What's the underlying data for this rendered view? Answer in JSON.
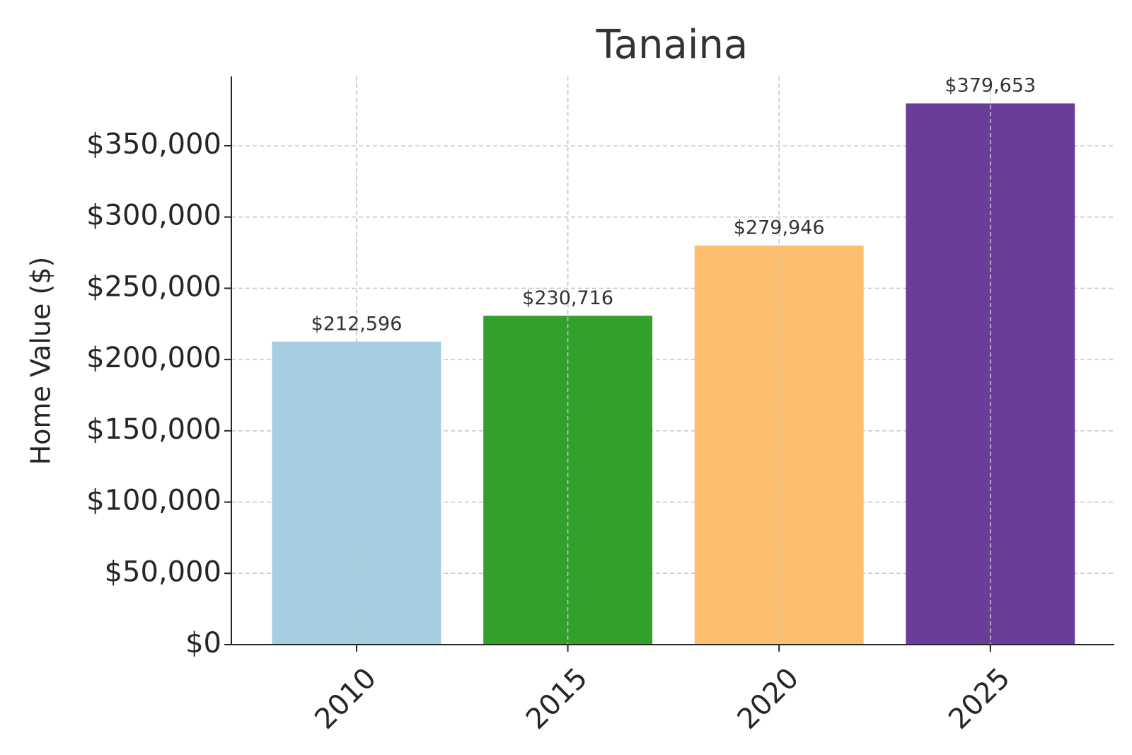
{
  "chart_data": {
    "type": "bar",
    "title": "Tanaina",
    "y_label": "Home Value ($)",
    "categories": [
      "2010",
      "2015",
      "2020",
      "2025"
    ],
    "values": [
      212596,
      230716,
      279946,
      379653
    ],
    "value_labels": [
      "$212,596",
      "$230,716",
      "$279,946",
      "$379,653"
    ],
    "colors": [
      "#a6cee3",
      "#33a02c",
      "#fdbf6f",
      "#6a3d9a"
    ],
    "ylim": [
      0,
      398636
    ],
    "yticks": [
      {
        "value": 0,
        "label": "$0"
      },
      {
        "value": 50000,
        "label": "$50,000"
      },
      {
        "value": 100000,
        "label": "$100,000"
      },
      {
        "value": 150000,
        "label": "$150,000"
      },
      {
        "value": 200000,
        "label": "$200,000"
      },
      {
        "value": 250000,
        "label": "$250,000"
      },
      {
        "value": 300000,
        "label": "$300,000"
      },
      {
        "value": 350000,
        "label": "$350,000"
      }
    ],
    "grid": true
  }
}
